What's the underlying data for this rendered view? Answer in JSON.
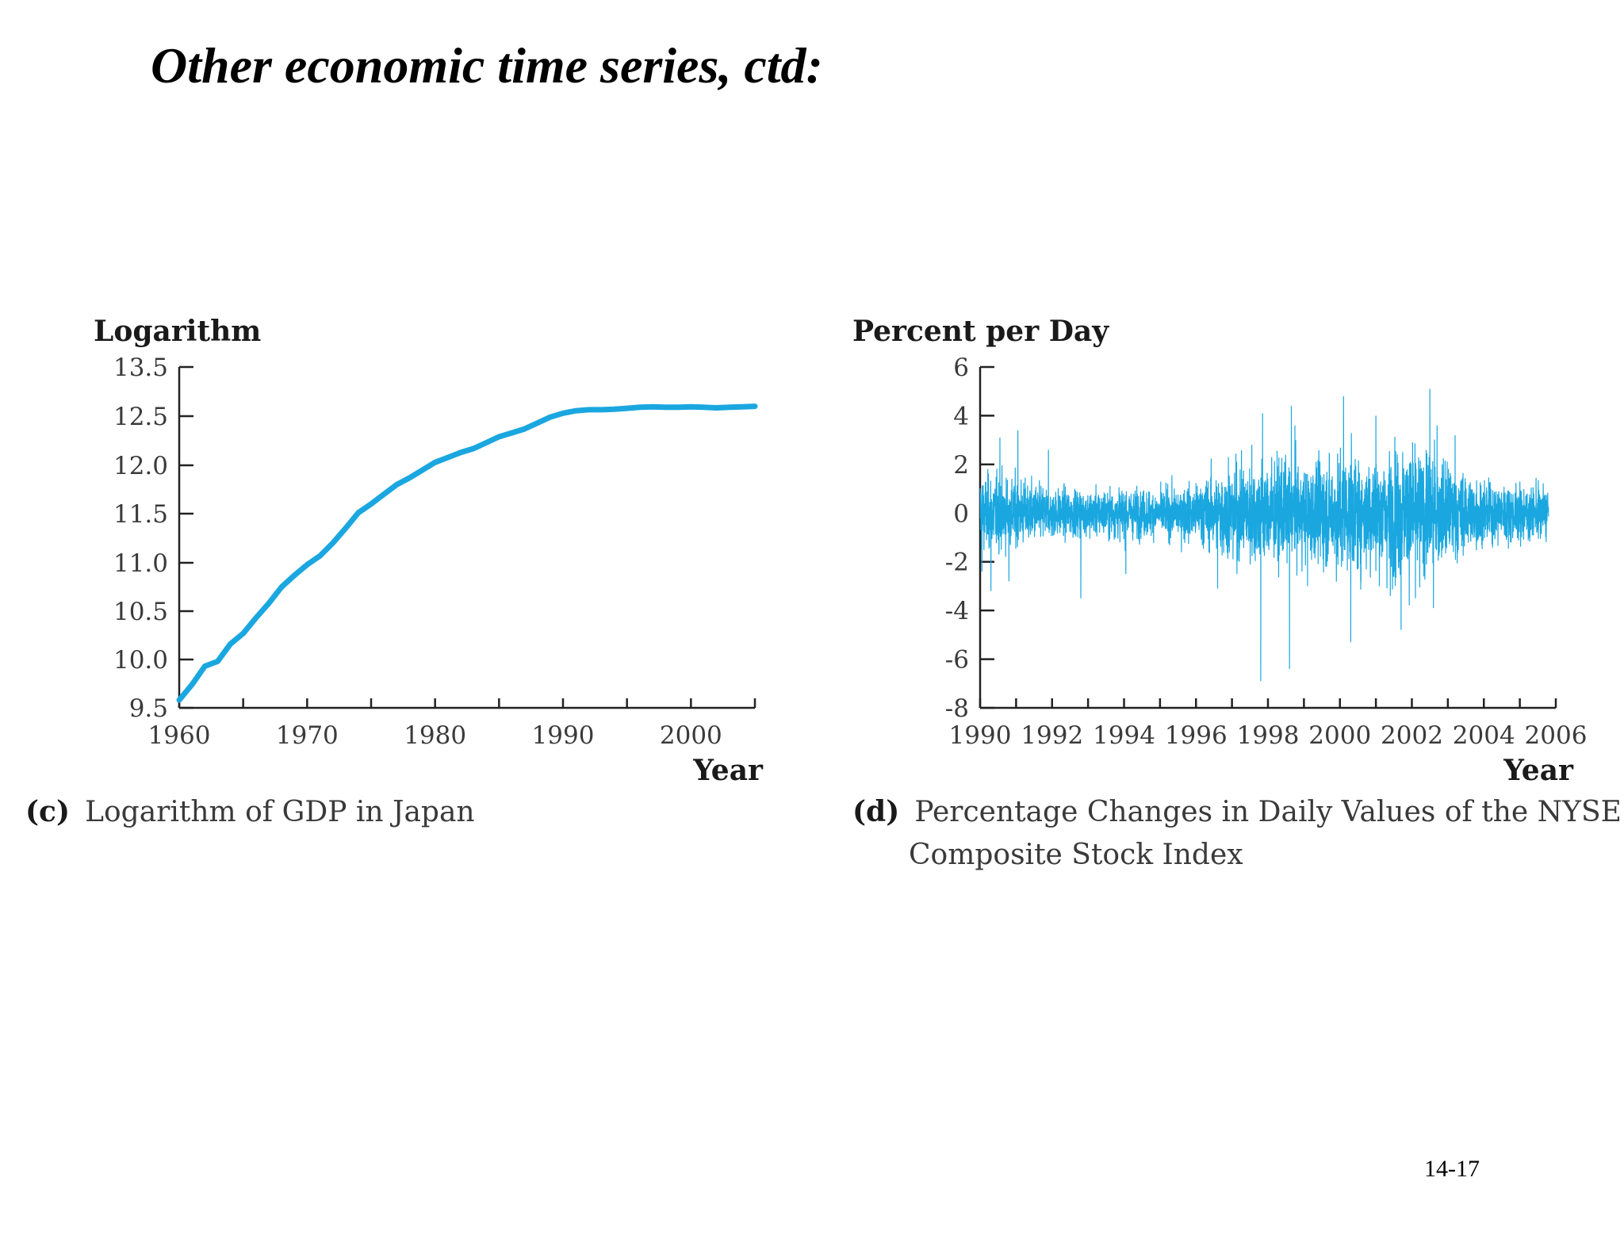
{
  "slide": {
    "title": "Other economic time series, ctd:",
    "page_number": "14-17"
  },
  "chart_data": [
    {
      "type": "line",
      "panel_letter": "(c)",
      "caption": "Logarithm of GDP in Japan",
      "ylabel": "Logarithm",
      "xlabel": "Year",
      "xlim": [
        1960,
        2005
      ],
      "ylim": [
        9.5,
        13.5
      ],
      "x_ticks": [
        1960,
        1965,
        1970,
        1975,
        1980,
        1985,
        1990,
        1995,
        2000,
        2005
      ],
      "x_tick_labels": [
        "1960",
        "1970",
        "1980",
        "1990",
        "2000"
      ],
      "y_tick_labels": [
        "13.5",
        "12.5",
        "12.0",
        "11.5",
        "11.0",
        "10.5",
        "10.0",
        "9.5"
      ],
      "color": "#1aa7e0",
      "series": [
        {
          "x": [
            1960,
            1961,
            1962,
            1963,
            1964,
            1965,
            1966,
            1967,
            1968,
            1969,
            1970,
            1971,
            1972,
            1973,
            1974,
            1975,
            1976,
            1977,
            1978,
            1979,
            1980,
            1981,
            1982,
            1983,
            1984,
            1985,
            1986,
            1987,
            1988,
            1989,
            1990,
            1991,
            1992,
            1993,
            1994,
            1995,
            1996,
            1997,
            1998,
            1999,
            2000,
            2001,
            2002,
            2003,
            2004,
            2005
          ],
          "y": [
            9.58,
            9.74,
            9.93,
            9.98,
            10.16,
            10.27,
            10.43,
            10.58,
            10.75,
            10.87,
            10.98,
            11.07,
            11.2,
            11.35,
            11.51,
            11.6,
            11.7,
            11.8,
            11.87,
            11.95,
            12.03,
            12.08,
            12.13,
            12.17,
            12.23,
            12.29,
            12.33,
            12.37,
            12.43,
            12.49,
            12.56,
            12.61,
            12.63,
            12.63,
            12.64,
            12.66,
            12.68,
            12.69,
            12.68,
            12.68,
            12.69,
            12.68,
            12.67,
            12.68,
            12.69,
            12.7
          ]
        }
      ]
    },
    {
      "type": "line",
      "panel_letter": "(d)",
      "caption_lines": [
        "Percentage Changes in Daily Values of the NYSE",
        "Composite Stock Index"
      ],
      "ylabel": "Percent per Day",
      "xlabel": "Year",
      "xlim": [
        1990,
        2006
      ],
      "ylim": [
        -8,
        6
      ],
      "x_ticks": [
        1990,
        1991,
        1992,
        1993,
        1994,
        1995,
        1996,
        1997,
        1998,
        1999,
        2000,
        2001,
        2002,
        2003,
        2004,
        2005,
        2006
      ],
      "x_tick_labels": [
        "1990",
        "1992",
        "1994",
        "1996",
        "1998",
        "2000",
        "2002",
        "2004",
        "2006"
      ],
      "y_ticks": [
        6,
        4,
        2,
        0,
        -2,
        -4,
        -6,
        -8
      ],
      "y_tick_labels": [
        "6",
        "4",
        "2",
        "0",
        "-2",
        "-4",
        "-6",
        "-8"
      ],
      "color": "#1aa7e0",
      "volatility": {
        "years": [
          1990,
          1991,
          1992,
          1993,
          1994,
          1995,
          1996,
          1997,
          1998,
          1999,
          2000,
          2001,
          2002,
          2003,
          2004,
          2005,
          2006
        ],
        "daily_sd": [
          0.85,
          0.75,
          0.55,
          0.5,
          0.55,
          0.5,
          0.65,
          1.05,
          1.15,
          1.0,
          1.3,
          1.25,
          1.5,
          1.05,
          0.7,
          0.6,
          0.6
        ]
      },
      "extreme_days": [
        {
          "x": 1990.05,
          "y": -2.4
        },
        {
          "x": 1990.3,
          "y": -3.2
        },
        {
          "x": 1990.55,
          "y": 3.1
        },
        {
          "x": 1990.8,
          "y": -2.8
        },
        {
          "x": 1991.05,
          "y": 3.4
        },
        {
          "x": 1991.9,
          "y": 2.6
        },
        {
          "x": 1992.8,
          "y": -3.5
        },
        {
          "x": 1994.05,
          "y": -2.5
        },
        {
          "x": 1996.6,
          "y": -3.1
        },
        {
          "x": 1996.9,
          "y": 2.3
        },
        {
          "x": 1997.55,
          "y": 2.8
        },
        {
          "x": 1997.8,
          "y": -6.9
        },
        {
          "x": 1997.85,
          "y": 4.1
        },
        {
          "x": 1998.6,
          "y": -6.4
        },
        {
          "x": 1998.65,
          "y": 4.4
        },
        {
          "x": 1998.75,
          "y": 3.6
        },
        {
          "x": 1999.1,
          "y": -3.0
        },
        {
          "x": 2000.1,
          "y": 4.8
        },
        {
          "x": 2000.3,
          "y": -5.3
        },
        {
          "x": 2001.0,
          "y": 4.0
        },
        {
          "x": 2001.4,
          "y": -3.4
        },
        {
          "x": 2001.7,
          "y": -4.8
        },
        {
          "x": 2002.1,
          "y": -3.5
        },
        {
          "x": 2002.5,
          "y": 5.1
        },
        {
          "x": 2002.6,
          "y": -3.9
        },
        {
          "x": 2002.7,
          "y": 3.6
        },
        {
          "x": 2003.2,
          "y": 3.2
        }
      ]
    }
  ]
}
